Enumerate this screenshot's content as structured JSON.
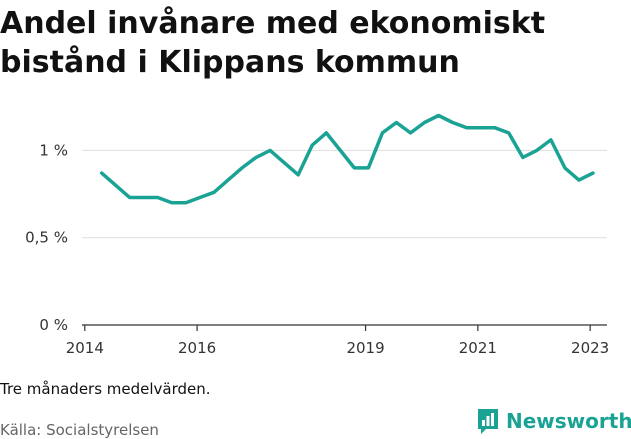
{
  "header": {
    "title": "Andel invånare med ekonomiskt bistånd i Klippans kommun"
  },
  "footer": {
    "note": "Tre månaders medelvärden.",
    "source": "Källa: Socialstyrelsen",
    "brand": "Newsworthy",
    "brand_icon": "bar-chart-icon"
  },
  "colors": {
    "line": "#1aa394",
    "grid": "#dddddd",
    "axis": "#333333"
  },
  "chart_data": {
    "type": "line",
    "title": "Andel invånare med ekonomiskt bistånd i Klippans kommun",
    "xlabel": "",
    "ylabel": "",
    "xlim": [
      2013.95,
      2023.3
    ],
    "ylim": [
      0,
      1.26
    ],
    "y_ticks": [
      0,
      0.5,
      1
    ],
    "y_tick_labels": [
      "0 %",
      "0,5 %",
      "1 %"
    ],
    "x_ticks": [
      2014,
      2016,
      2019,
      2021,
      2023
    ],
    "x_tick_labels": [
      "2014",
      "2016",
      "2019",
      "2021",
      "2023"
    ],
    "grid": "horizontal",
    "series": [
      {
        "x": [
          2014.3,
          2014.55,
          2014.8,
          2015.05,
          2015.3,
          2015.55,
          2015.8,
          2016.05,
          2016.3,
          2016.55,
          2016.8,
          2017.05,
          2017.3,
          2017.55,
          2017.8,
          2018.05,
          2018.3,
          2018.55,
          2018.8,
          2019.05,
          2019.3,
          2019.55,
          2019.8,
          2020.05,
          2020.3,
          2020.55,
          2020.8,
          2021.05,
          2021.3,
          2021.55,
          2021.8,
          2022.05,
          2022.3,
          2022.55,
          2022.8,
          2023.05
        ],
        "values": [
          0.87,
          0.8,
          0.73,
          0.73,
          0.73,
          0.7,
          0.7,
          0.73,
          0.76,
          0.83,
          0.9,
          0.96,
          1.0,
          0.93,
          0.86,
          1.03,
          1.1,
          1.0,
          0.9,
          0.9,
          1.1,
          1.16,
          1.1,
          1.16,
          1.2,
          1.16,
          1.13,
          1.13,
          1.13,
          1.1,
          0.96,
          1.0,
          1.06,
          0.9,
          0.83,
          0.87
        ]
      }
    ]
  }
}
